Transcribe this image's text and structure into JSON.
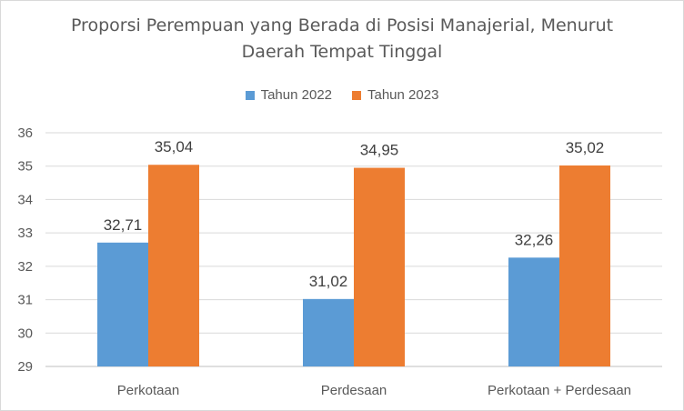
{
  "chart_data": {
    "type": "bar",
    "title_lines": [
      "Proporsi Perempuan yang Berada di Posisi Manajerial, Menurut",
      "Daerah Tempat Tinggal"
    ],
    "categories": [
      "Perkotaan",
      "Perdesaan",
      "Perkotaan + Perdesaan"
    ],
    "series": [
      {
        "name": "Tahun 2022",
        "color": "#5b9bd5",
        "values": [
          32.71,
          31.02,
          32.26
        ],
        "labels": [
          "32,71",
          "31,02",
          "32,26"
        ]
      },
      {
        "name": "Tahun 2023",
        "color": "#ed7d31",
        "values": [
          35.04,
          34.95,
          35.02
        ],
        "labels": [
          "35,04",
          "34,95",
          "35,02"
        ]
      }
    ],
    "ylim": [
      29,
      36
    ],
    "yticks": [
      "29",
      "30",
      "31",
      "32",
      "33",
      "34",
      "35",
      "36"
    ],
    "grid": true,
    "legend_position": "top"
  }
}
